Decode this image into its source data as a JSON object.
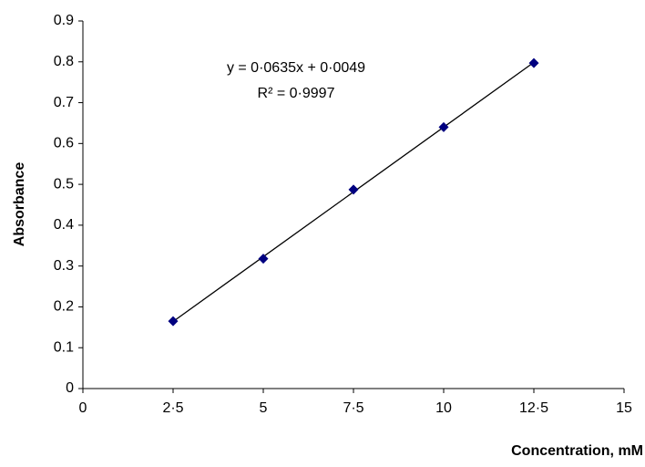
{
  "chart_data": {
    "type": "scatter",
    "x_label": "Concentration, mM",
    "y_label": "Absorbance",
    "x": [
      2.5,
      5,
      7.5,
      10,
      12.5
    ],
    "series": [
      {
        "name": "Absorbance",
        "color": "#000080",
        "values": [
          0.165,
          0.318,
          0.487,
          0.64,
          0.797
        ]
      }
    ],
    "trendline": {
      "equation": "y = 0·0635x + 0·0049",
      "r_squared": "R² = 0·9997",
      "color": "#000000"
    },
    "xlim": [
      0,
      15
    ],
    "ylim": [
      0,
      0.9
    ],
    "xticks": [
      0,
      {
        "value": 2.5,
        "label": "2·5"
      },
      5,
      {
        "value": 7.5,
        "label": "7·5"
      },
      10,
      {
        "value": 12.5,
        "label": "12·5"
      },
      15
    ],
    "yticks": [
      0,
      0.1,
      0.2,
      0.3,
      0.4,
      0.5,
      0.6,
      0.7,
      0.8,
      0.9
    ],
    "grid": false
  }
}
